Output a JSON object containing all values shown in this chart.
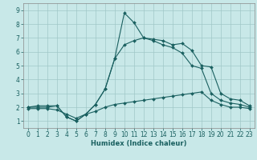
{
  "xlabel": "Humidex (Indice chaleur)",
  "background_color": "#c8e8e8",
  "grid_color": "#a0c8c8",
  "line_color": "#1a6060",
  "xlim": [
    -0.5,
    23.5
  ],
  "ylim": [
    0.5,
    9.5
  ],
  "xticks": [
    0,
    1,
    2,
    3,
    4,
    5,
    6,
    7,
    8,
    9,
    10,
    11,
    12,
    13,
    14,
    15,
    16,
    17,
    18,
    19,
    20,
    21,
    22,
    23
  ],
  "yticks": [
    1,
    2,
    3,
    4,
    5,
    6,
    7,
    8,
    9
  ],
  "series1_x": [
    0,
    1,
    2,
    3,
    4,
    5,
    6,
    7,
    8,
    9,
    10,
    11,
    12,
    13,
    14,
    15,
    16,
    17,
    18,
    19,
    20,
    21,
    22,
    23
  ],
  "series1_y": [
    2.0,
    2.0,
    2.0,
    2.1,
    1.3,
    1.0,
    1.5,
    2.2,
    3.3,
    5.5,
    8.8,
    8.1,
    7.0,
    6.9,
    6.8,
    6.5,
    6.6,
    6.1,
    5.0,
    4.9,
    3.0,
    2.6,
    2.5,
    2.1
  ],
  "series2_x": [
    0,
    1,
    2,
    3,
    4,
    5,
    6,
    7,
    8,
    9,
    10,
    11,
    12,
    13,
    14,
    15,
    16,
    17,
    18,
    19,
    20,
    21,
    22,
    23
  ],
  "series2_y": [
    2.0,
    2.1,
    2.1,
    2.1,
    1.3,
    1.0,
    1.5,
    2.2,
    3.3,
    5.5,
    6.5,
    6.8,
    7.0,
    6.8,
    6.5,
    6.3,
    5.9,
    5.0,
    4.8,
    3.0,
    2.5,
    2.3,
    2.2,
    2.0
  ],
  "series3_x": [
    0,
    1,
    2,
    3,
    4,
    5,
    6,
    7,
    8,
    9,
    10,
    11,
    12,
    13,
    14,
    15,
    16,
    17,
    18,
    19,
    20,
    21,
    22,
    23
  ],
  "series3_y": [
    1.9,
    1.9,
    1.9,
    1.8,
    1.5,
    1.2,
    1.5,
    1.7,
    2.0,
    2.2,
    2.3,
    2.4,
    2.5,
    2.6,
    2.7,
    2.8,
    2.9,
    3.0,
    3.1,
    2.5,
    2.2,
    2.0,
    2.0,
    1.9
  ],
  "tick_fontsize": 5.5,
  "xlabel_fontsize": 6.0
}
